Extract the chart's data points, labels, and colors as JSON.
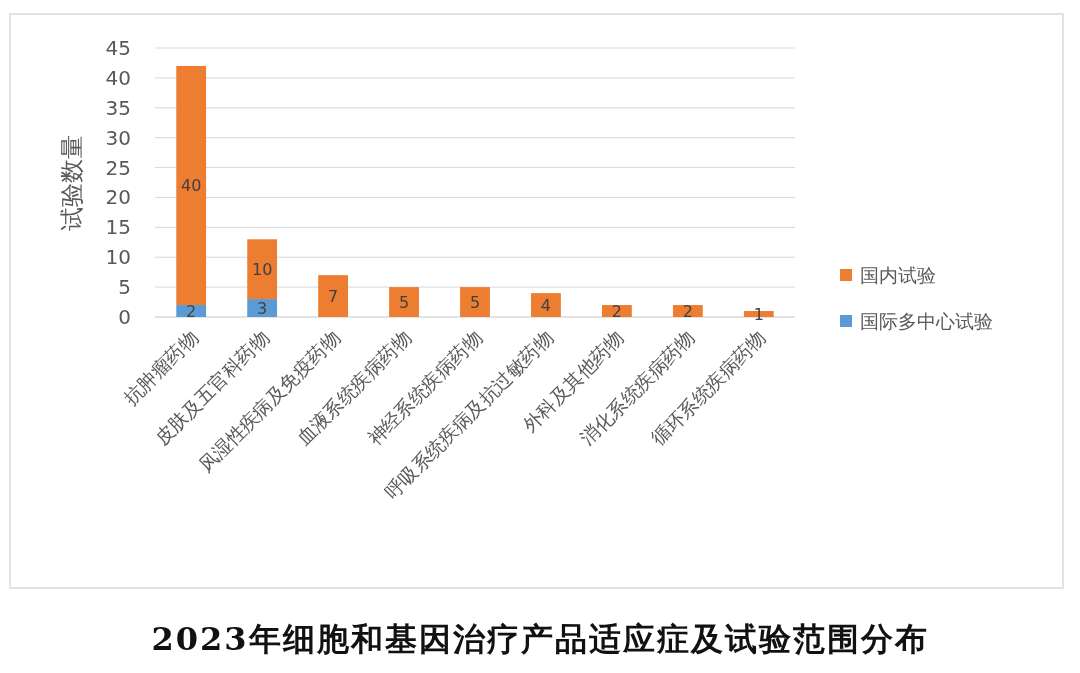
{
  "chart_data": {
    "type": "bar",
    "stacked": true,
    "title": "2023年细胞和基因治疗产品适应症及试验范围分布",
    "ylabel": "试验数量",
    "categories": [
      "抗肿瘤药物",
      "皮肤及五官科药物",
      "风湿性疾病及免疫药物",
      "血液系统疾病药物",
      "神经系统疾病药物",
      "呼吸系统疾病及抗过敏药物",
      "外科及其他药物",
      "消化系统疾病药物",
      "循环系统疾病药物"
    ],
    "series": [
      {
        "name": "国际多中心试验",
        "color": "#5b9bd5",
        "values": [
          2,
          3,
          null,
          null,
          null,
          null,
          null,
          null,
          null
        ],
        "value_labels": [
          "2",
          "3",
          null,
          null,
          null,
          null,
          null,
          null,
          null
        ]
      },
      {
        "name": "国内试验",
        "color": "#ed7d31",
        "values": [
          40,
          10,
          7,
          5,
          5,
          4,
          2,
          2,
          1
        ],
        "value_labels": [
          "40",
          "10",
          "7",
          "5",
          "5",
          "4",
          "2",
          "2",
          "1"
        ]
      }
    ],
    "ylim": [
      0,
      45
    ],
    "yticks": [
      0,
      5,
      10,
      15,
      20,
      25,
      30,
      35,
      40,
      45
    ],
    "grid": "y",
    "legend": "right"
  }
}
